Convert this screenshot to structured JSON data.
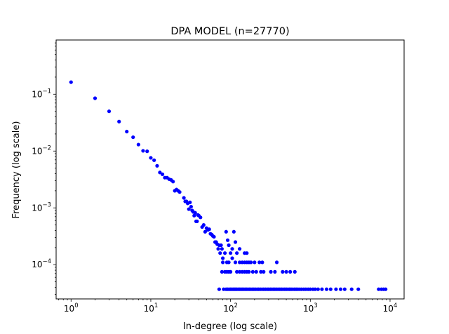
{
  "chart_data": {
    "type": "scatter",
    "title": "DPA MODEL (n=27770)",
    "xlabel": "In-degree (log scale)",
    "ylabel": "Frequency (log scale)",
    "xscale": "log",
    "yscale": "log",
    "xlim": [
      0.65,
      15000
    ],
    "ylim": [
      2.5e-05,
      0.9
    ],
    "grid": false,
    "legend": "none",
    "marker_color": "#0000ff",
    "x_ticks": [
      {
        "label": "10",
        "sup": "0",
        "value": 1
      },
      {
        "label": "10",
        "sup": "1",
        "value": 10
      },
      {
        "label": "10",
        "sup": "2",
        "value": 100
      },
      {
        "label": "10",
        "sup": "3",
        "value": 1000
      },
      {
        "label": "10",
        "sup": "4",
        "value": 10000
      }
    ],
    "y_ticks": [
      {
        "label": "10",
        "sup": "−4",
        "value": 0.0001
      },
      {
        "label": "10",
        "sup": "−3",
        "value": 0.001
      },
      {
        "label": "10",
        "sup": "−2",
        "value": 0.01
      },
      {
        "label": "10",
        "sup": "−1",
        "value": 0.1
      }
    ],
    "points": [
      [
        1,
        0.163
      ],
      [
        2,
        0.085
      ],
      [
        3,
        0.05
      ],
      [
        4,
        0.033
      ],
      [
        5,
        0.022
      ],
      [
        6,
        0.0175
      ],
      [
        7,
        0.013
      ],
      [
        8,
        0.0101
      ],
      [
        9,
        0.0099
      ],
      [
        10,
        0.0076
      ],
      [
        11,
        0.0069
      ],
      [
        12,
        0.0055
      ],
      [
        13,
        0.0042
      ],
      [
        14,
        0.0039
      ],
      [
        15,
        0.0034
      ],
      [
        16,
        0.0034
      ],
      [
        17,
        0.0032
      ],
      [
        18,
        0.0031
      ],
      [
        19,
        0.0029
      ],
      [
        20,
        0.002
      ],
      [
        21,
        0.0021
      ],
      [
        22,
        0.002
      ],
      [
        23,
        0.0019
      ],
      [
        26,
        0.0015
      ],
      [
        27,
        0.0013
      ],
      [
        28,
        0.0013
      ],
      [
        29,
        0.0012
      ],
      [
        30,
        0.00095
      ],
      [
        31,
        0.00125
      ],
      [
        32,
        0.00105
      ],
      [
        33,
        0.0009
      ],
      [
        34,
        0.00085
      ],
      [
        35,
        0.00073
      ],
      [
        36,
        0.00082
      ],
      [
        37,
        0.00058
      ],
      [
        38,
        0.00058
      ],
      [
        39,
        0.00075
      ],
      [
        40,
        0.00073
      ],
      [
        42,
        0.00068
      ],
      [
        44,
        0.00046
      ],
      [
        46,
        0.0005
      ],
      [
        48,
        0.00038
      ],
      [
        50,
        0.00044
      ],
      [
        52,
        0.00041
      ],
      [
        54,
        0.00042
      ],
      [
        56,
        0.00035
      ],
      [
        58,
        0.00034
      ],
      [
        60,
        0.00032
      ],
      [
        62,
        0.00031
      ],
      [
        64,
        0.00025
      ],
      [
        66,
        0.00025
      ],
      [
        68,
        0.00023
      ],
      [
        70,
        0.00019
      ],
      [
        72,
        0.00022
      ],
      [
        74,
        0.00016
      ],
      [
        76,
        0.00022
      ],
      [
        78,
        0.00019
      ],
      [
        80,
        0.00013
      ],
      [
        85,
        0.00016
      ],
      [
        88,
        0.00038
      ],
      [
        90,
        0.00011
      ],
      [
        92,
        0.00027
      ],
      [
        95,
        0.00011
      ],
      [
        100,
        0.00016
      ],
      [
        105,
        0.00013
      ],
      [
        110,
        0.00038
      ],
      [
        115,
        0.00011
      ],
      [
        120,
        0.00016
      ],
      [
        130,
        0.00011
      ],
      [
        140,
        0.00011
      ],
      [
        150,
        0.00016
      ],
      [
        160,
        0.00011
      ],
      [
        170,
        0.00011
      ],
      [
        80,
        0.00011
      ],
      [
        95,
        0.00022
      ],
      [
        105,
        0.00019
      ],
      [
        115,
        0.00025
      ],
      [
        130,
        0.00019
      ],
      [
        150,
        0.00011
      ],
      [
        160,
        0.00016
      ],
      [
        180,
        0.00011
      ],
      [
        200,
        0.00011
      ],
      [
        230,
        0.00011
      ],
      [
        250,
        0.00011
      ],
      [
        380,
        0.00011
      ],
      [
        78,
        7.5e-05
      ],
      [
        85,
        7.5e-05
      ],
      [
        90,
        7.5e-05
      ],
      [
        95,
        7.5e-05
      ],
      [
        100,
        7.5e-05
      ],
      [
        120,
        7.5e-05
      ],
      [
        130,
        7.5e-05
      ],
      [
        140,
        7.5e-05
      ],
      [
        150,
        7.5e-05
      ],
      [
        160,
        7.5e-05
      ],
      [
        170,
        7.5e-05
      ],
      [
        190,
        7.5e-05
      ],
      [
        210,
        7.5e-05
      ],
      [
        240,
        7.5e-05
      ],
      [
        260,
        7.5e-05
      ],
      [
        320,
        7.5e-05
      ],
      [
        360,
        7.5e-05
      ],
      [
        450,
        7.5e-05
      ],
      [
        500,
        7.5e-05
      ],
      [
        560,
        7.5e-05
      ],
      [
        640,
        7.5e-05
      ],
      [
        72,
        3.7e-05
      ],
      [
        82,
        3.7e-05
      ],
      [
        88,
        3.7e-05
      ],
      [
        92,
        3.7e-05
      ],
      [
        96,
        3.7e-05
      ],
      [
        100,
        3.7e-05
      ],
      [
        104,
        3.7e-05
      ],
      [
        108,
        3.7e-05
      ],
      [
        112,
        3.7e-05
      ],
      [
        116,
        3.7e-05
      ],
      [
        120,
        3.7e-05
      ],
      [
        125,
        3.7e-05
      ],
      [
        130,
        3.7e-05
      ],
      [
        135,
        3.7e-05
      ],
      [
        140,
        3.7e-05
      ],
      [
        146,
        3.7e-05
      ],
      [
        152,
        3.7e-05
      ],
      [
        158,
        3.7e-05
      ],
      [
        165,
        3.7e-05
      ],
      [
        172,
        3.7e-05
      ],
      [
        180,
        3.7e-05
      ],
      [
        188,
        3.7e-05
      ],
      [
        196,
        3.7e-05
      ],
      [
        205,
        3.7e-05
      ],
      [
        215,
        3.7e-05
      ],
      [
        225,
        3.7e-05
      ],
      [
        236,
        3.7e-05
      ],
      [
        248,
        3.7e-05
      ],
      [
        260,
        3.7e-05
      ],
      [
        273,
        3.7e-05
      ],
      [
        287,
        3.7e-05
      ],
      [
        300,
        3.7e-05
      ],
      [
        315,
        3.7e-05
      ],
      [
        330,
        3.7e-05
      ],
      [
        345,
        3.7e-05
      ],
      [
        360,
        3.7e-05
      ],
      [
        378,
        3.7e-05
      ],
      [
        395,
        3.7e-05
      ],
      [
        415,
        3.7e-05
      ],
      [
        435,
        3.7e-05
      ],
      [
        455,
        3.7e-05
      ],
      [
        478,
        3.7e-05
      ],
      [
        500,
        3.7e-05
      ],
      [
        525,
        3.7e-05
      ],
      [
        550,
        3.7e-05
      ],
      [
        575,
        3.7e-05
      ],
      [
        605,
        3.7e-05
      ],
      [
        635,
        3.7e-05
      ],
      [
        665,
        3.7e-05
      ],
      [
        700,
        3.7e-05
      ],
      [
        740,
        3.7e-05
      ],
      [
        780,
        3.7e-05
      ],
      [
        830,
        3.7e-05
      ],
      [
        880,
        3.7e-05
      ],
      [
        940,
        3.7e-05
      ],
      [
        1000,
        3.7e-05
      ],
      [
        1080,
        3.7e-05
      ],
      [
        1150,
        3.7e-05
      ],
      [
        1250,
        3.7e-05
      ],
      [
        1400,
        3.7e-05
      ],
      [
        1600,
        3.7e-05
      ],
      [
        1800,
        3.7e-05
      ],
      [
        2100,
        3.7e-05
      ],
      [
        2400,
        3.7e-05
      ],
      [
        2700,
        3.7e-05
      ],
      [
        3300,
        3.7e-05
      ],
      [
        4000,
        3.7e-05
      ],
      [
        7200,
        3.7e-05
      ],
      [
        7800,
        3.7e-05
      ],
      [
        8300,
        3.7e-05
      ],
      [
        8800,
        3.7e-05
      ]
    ]
  }
}
